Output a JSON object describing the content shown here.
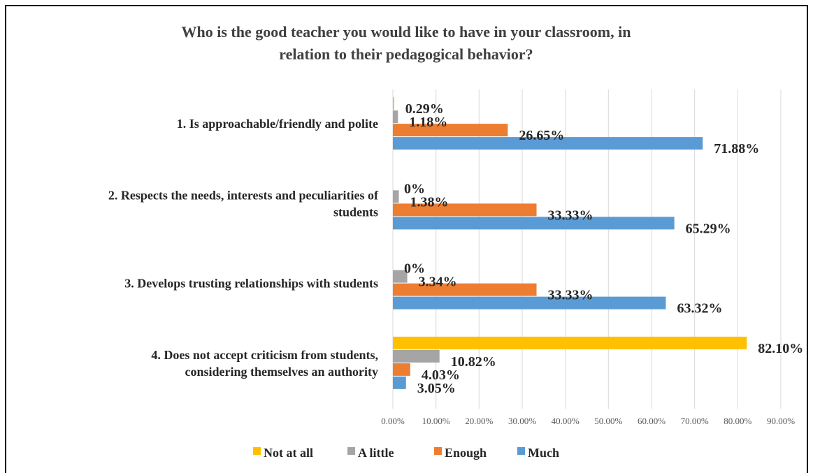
{
  "chart_data": {
    "type": "bar",
    "orientation": "horizontal",
    "title": "Who is the good teacher you would like to have in your classroom, in relation to their pedagogical behavior?",
    "title_lines": [
      "Who is the good teacher you would like to have in your classroom, in",
      "relation to their pedagogical behavior?"
    ],
    "categories": [
      [
        "1. Is approachable/friendly and polite"
      ],
      [
        "2. Respects the needs, interests and peculiarities of",
        "students"
      ],
      [
        "3. Develops trusting relationships with students"
      ],
      [
        "4. Does not accept criticism from students,",
        "considering themselves an authority"
      ]
    ],
    "series": [
      {
        "name": "Not at all",
        "color": "#FFC000",
        "values": [
          0.29,
          0,
          0,
          82.1
        ],
        "labels": [
          "0.29%",
          "0%",
          "0%",
          "82.10%"
        ]
      },
      {
        "name": "A little",
        "color": "#A5A5A5",
        "values": [
          1.18,
          1.38,
          3.34,
          10.82
        ],
        "labels": [
          "1.18%",
          "1.38%",
          "3.34%",
          "10.82%"
        ]
      },
      {
        "name": "Enough",
        "color": "#ED7D31",
        "values": [
          26.65,
          33.33,
          33.33,
          4.03
        ],
        "labels": [
          "26.65%",
          "33.33%",
          "33.33%",
          "4.03%"
        ]
      },
      {
        "name": "Much",
        "color": "#5B9BD5",
        "values": [
          71.88,
          65.29,
          63.32,
          3.05
        ],
        "labels": [
          "71.88%",
          "65.29%",
          "63.32%",
          "3.05%"
        ]
      }
    ],
    "xlim": [
      0,
      90
    ],
    "xticks": [
      0,
      10,
      20,
      30,
      40,
      50,
      60,
      70,
      80,
      90
    ],
    "xtick_labels": [
      "0.00%",
      "10.00%",
      "20.00%",
      "30.00%",
      "40.00%",
      "50.00%",
      "60.00%",
      "70.00%",
      "80.00%",
      "90.00%"
    ],
    "grid": true,
    "legend": "bottom",
    "border_color": "#000000",
    "grid_color": "#D9D9D9"
  }
}
